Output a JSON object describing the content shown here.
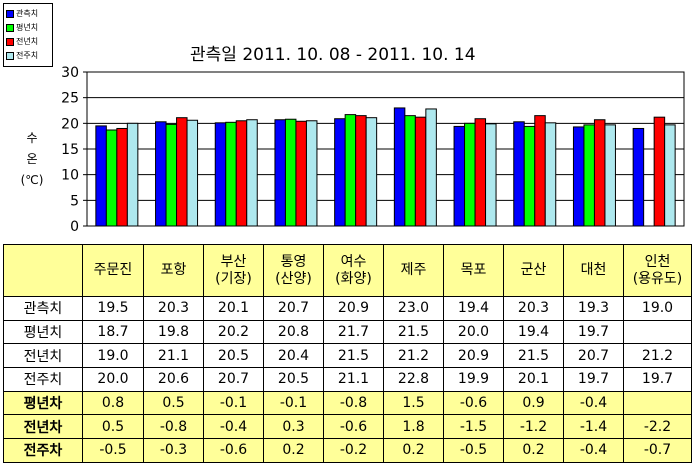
{
  "title": "관측일 2011. 10. 08 -  2011. 10. 14",
  "y_axis_label": [
    "수",
    "온",
    "(℃)"
  ],
  "legend": [
    {
      "label": "관측치",
      "color": "#0000ff"
    },
    {
      "label": "평년치",
      "color": "#00ff00"
    },
    {
      "label": "전년치",
      "color": "#ff0000"
    },
    {
      "label": "전주치",
      "color": "#aee8ee"
    }
  ],
  "chart_data": {
    "type": "bar",
    "categories": [
      "주문진",
      "포항",
      "부산(기장)",
      "통영(산양)",
      "여수(화양)",
      "제주",
      "목포",
      "군산",
      "대천",
      "인천(용유도)"
    ],
    "series": [
      {
        "name": "관측치",
        "color": "#0000ff",
        "values": [
          19.5,
          20.3,
          20.1,
          20.7,
          20.9,
          23.0,
          19.4,
          20.3,
          19.3,
          19.0
        ]
      },
      {
        "name": "평년치",
        "color": "#00ff00",
        "values": [
          18.7,
          19.8,
          20.2,
          20.8,
          21.7,
          21.5,
          20.0,
          19.4,
          19.7,
          null
        ]
      },
      {
        "name": "전년치",
        "color": "#ff0000",
        "values": [
          19.0,
          21.1,
          20.5,
          20.4,
          21.5,
          21.2,
          20.9,
          21.5,
          20.7,
          21.2
        ]
      },
      {
        "name": "전주치",
        "color": "#aee8ee",
        "values": [
          20.0,
          20.6,
          20.7,
          20.5,
          21.1,
          22.8,
          19.9,
          20.1,
          19.7,
          19.7
        ]
      }
    ],
    "ylim": [
      0,
      30
    ],
    "yticks": [
      "0",
      "5",
      "10",
      "15",
      "20",
      "25",
      "30"
    ],
    "grid": true
  },
  "table": {
    "header": [
      [
        "주문진"
      ],
      [
        "포항"
      ],
      [
        "부산",
        "(기장)"
      ],
      [
        "통영",
        "(산양)"
      ],
      [
        "여수",
        "(화양)"
      ],
      [
        "제주"
      ],
      [
        "목포"
      ],
      [
        "군산"
      ],
      [
        "대천"
      ],
      [
        "인천",
        "(용유도)"
      ]
    ],
    "rows": [
      {
        "label": "관측치",
        "style": "white",
        "values": [
          "19.5",
          "20.3",
          "20.1",
          "20.7",
          "20.9",
          "23.0",
          "19.4",
          "20.3",
          "19.3",
          "19.0"
        ]
      },
      {
        "label": "평년치",
        "style": "white",
        "values": [
          "18.7",
          "19.8",
          "20.2",
          "20.8",
          "21.7",
          "21.5",
          "20.0",
          "19.4",
          "19.7",
          ""
        ]
      },
      {
        "label": "전년치",
        "style": "white",
        "values": [
          "19.0",
          "21.1",
          "20.5",
          "20.4",
          "21.5",
          "21.2",
          "20.9",
          "21.5",
          "20.7",
          "21.2"
        ]
      },
      {
        "label": "전주치",
        "style": "white",
        "values": [
          "20.0",
          "20.6",
          "20.7",
          "20.5",
          "21.1",
          "22.8",
          "19.9",
          "20.1",
          "19.7",
          "19.7"
        ]
      },
      {
        "label": "평년차",
        "style": "yellow",
        "values": [
          "0.8",
          "0.5",
          "-0.1",
          "-0.1",
          "-0.8",
          "1.5",
          "-0.6",
          "0.9",
          "-0.4",
          ""
        ]
      },
      {
        "label": "전년차",
        "style": "yellow",
        "values": [
          "0.5",
          "-0.8",
          "-0.4",
          "0.3",
          "-0.6",
          "1.8",
          "-1.5",
          "-1.2",
          "-1.4",
          "-2.2"
        ]
      },
      {
        "label": "전주차",
        "style": "yellow",
        "values": [
          "-0.5",
          "-0.3",
          "-0.6",
          "0.2",
          "-0.2",
          "0.2",
          "-0.5",
          "0.2",
          "-0.4",
          "-0.7"
        ]
      }
    ]
  }
}
